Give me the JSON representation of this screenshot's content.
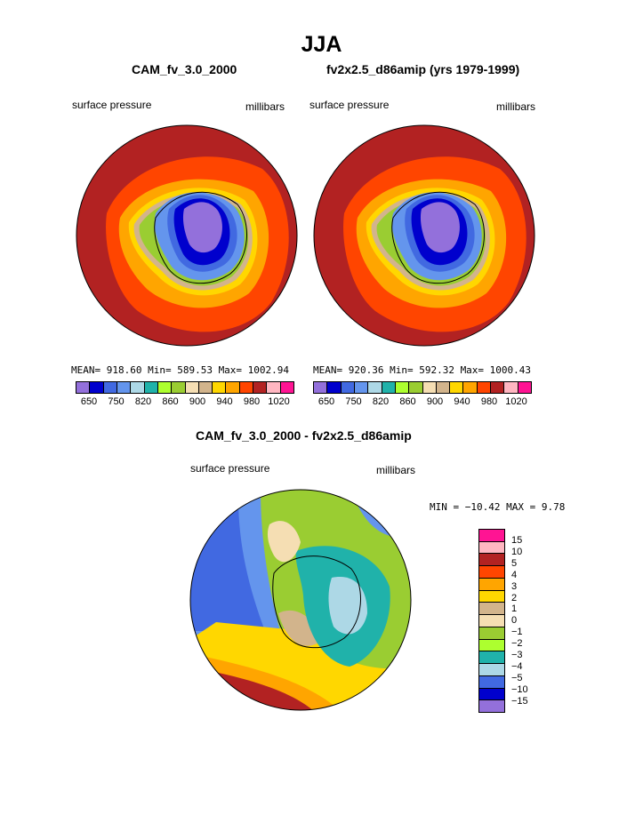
{
  "title": "JJA",
  "units_label": "millibars",
  "panels": [
    {
      "title": "CAM_fv_3.0_2000",
      "field": "surface pressure",
      "units": "millibars",
      "stats": "MEAN= 918.60  Min= 589.53  Max= 1002.94"
    },
    {
      "title": "fv2x2.5_d86amip (yrs 1979-1999)",
      "field": "surface pressure",
      "units": "millibars",
      "stats": "MEAN= 920.36  Min= 592.32  Max= 1000.43"
    }
  ],
  "diff_panel": {
    "title": "CAM_fv_3.0_2000 - fv2x2.5_d86amip",
    "field": "surface pressure",
    "units": "millibars",
    "stats": "MIN = −10.42  MAX =    9.78"
  },
  "colorbar": {
    "colors": [
      "#9370db",
      "#0000cd",
      "#4169e1",
      "#6495ed",
      "#add8e6",
      "#20b2aa",
      "#adff2f",
      "#9acd32",
      "#f5deb3",
      "#d2b48c",
      "#ffd700",
      "#ffa500",
      "#ff4500",
      "#b22222",
      "#ffb6c1",
      "#ff1493"
    ],
    "tick_labels": [
      "650",
      "750",
      "820",
      "860",
      "900",
      "940",
      "980",
      "1020"
    ]
  },
  "diff_colorbar": {
    "colors": [
      "#ff1493",
      "#ffb6c1",
      "#b22222",
      "#ff4500",
      "#ffa500",
      "#ffd700",
      "#d2b48c",
      "#f5deb3",
      "#9acd32",
      "#adff2f",
      "#20b2aa",
      "#add8e6",
      "#4169e1",
      "#0000cd",
      "#9370db"
    ],
    "tick_labels": [
      "15",
      "10",
      "5",
      "4",
      "3",
      "2",
      "1",
      "0",
      "−1",
      "−2",
      "−3",
      "−4",
      "−5",
      "−10",
      "−15"
    ]
  },
  "chart_data": [
    {
      "type": "heatmap",
      "title": "CAM_fv_3.0_2000",
      "variable": "surface pressure",
      "units": "millibars",
      "projection": "south polar stereographic",
      "mean": 918.6,
      "min": 589.53,
      "max": 1002.94,
      "levels": [
        650,
        700,
        750,
        800,
        820,
        840,
        860,
        880,
        900,
        920,
        940,
        960,
        980,
        1000,
        1020
      ]
    },
    {
      "type": "heatmap",
      "title": "fv2x2.5_d86amip (yrs 1979-1999)",
      "variable": "surface pressure",
      "units": "millibars",
      "projection": "south polar stereographic",
      "mean": 920.36,
      "min": 592.32,
      "max": 1000.43,
      "levels": [
        650,
        700,
        750,
        800,
        820,
        840,
        860,
        880,
        900,
        920,
        940,
        960,
        980,
        1000,
        1020
      ]
    },
    {
      "type": "heatmap",
      "title": "CAM_fv_3.0_2000 - fv2x2.5_d86amip",
      "variable": "surface pressure",
      "units": "millibars",
      "projection": "south polar stereographic",
      "min": -10.42,
      "max": 9.78,
      "levels": [
        -15,
        -10,
        -5,
        -4,
        -3,
        -2,
        -1,
        0,
        1,
        2,
        3,
        4,
        5,
        10,
        15
      ]
    }
  ]
}
